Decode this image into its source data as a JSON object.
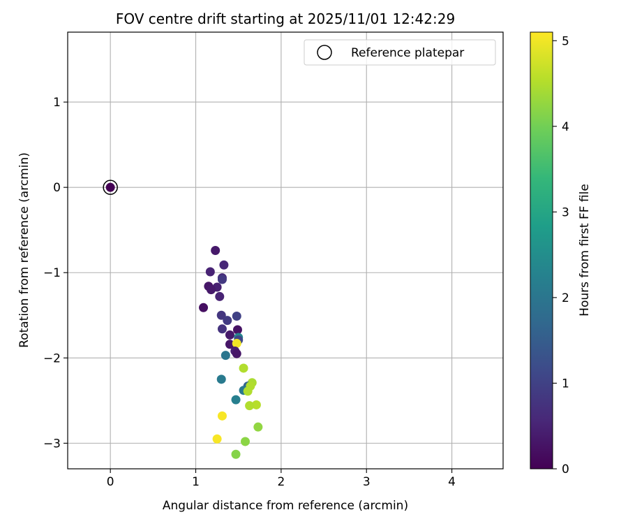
{
  "chart_data": {
    "type": "scatter",
    "title": "FOV centre drift starting at 2025/11/01 12:42:29",
    "xlabel": "Angular distance from reference (arcmin)",
    "ylabel": "Rotation from reference (arcmin)",
    "xlim": [
      -0.5,
      4.6
    ],
    "ylim": [
      -3.3,
      1.82
    ],
    "xticks": [
      0,
      1,
      2,
      3,
      4
    ],
    "yticks": [
      -3,
      -2,
      -1,
      0,
      1
    ],
    "grid": true,
    "legend": {
      "position": "top-right",
      "entries": [
        "Reference platepar"
      ]
    },
    "reference_point": {
      "x": 0,
      "y": 0
    },
    "colorbar": {
      "label": "Hours from first FF file",
      "range": [
        0,
        5.1
      ],
      "ticks": [
        0,
        1,
        2,
        3,
        4,
        5
      ],
      "colormap": [
        "#440154",
        "#482878",
        "#3e4989",
        "#31688e",
        "#26828e",
        "#1f9e89",
        "#35b779",
        "#6ece58",
        "#b5de2b",
        "#fde725"
      ]
    },
    "points": [
      {
        "x": 0.0,
        "y": 0.0,
        "t": 0.0
      },
      {
        "x": 1.23,
        "y": -0.74,
        "t": 0.35
      },
      {
        "x": 1.33,
        "y": -0.91,
        "t": 0.55
      },
      {
        "x": 1.17,
        "y": -0.99,
        "t": 0.5
      },
      {
        "x": 1.31,
        "y": -1.06,
        "t": 0.6
      },
      {
        "x": 1.31,
        "y": -1.08,
        "t": 0.85
      },
      {
        "x": 1.15,
        "y": -1.16,
        "t": 0.3
      },
      {
        "x": 1.25,
        "y": -1.17,
        "t": 0.45
      },
      {
        "x": 1.18,
        "y": -1.2,
        "t": 0.35
      },
      {
        "x": 1.28,
        "y": -1.28,
        "t": 0.5
      },
      {
        "x": 1.09,
        "y": -1.41,
        "t": 0.2
      },
      {
        "x": 1.3,
        "y": -1.5,
        "t": 0.8
      },
      {
        "x": 1.48,
        "y": -1.51,
        "t": 1.0
      },
      {
        "x": 1.37,
        "y": -1.56,
        "t": 0.9
      },
      {
        "x": 1.31,
        "y": -1.66,
        "t": 0.75
      },
      {
        "x": 1.49,
        "y": -1.67,
        "t": 0.25
      },
      {
        "x": 1.4,
        "y": -1.73,
        "t": 0.35
      },
      {
        "x": 1.5,
        "y": -1.76,
        "t": 2.3
      },
      {
        "x": 1.5,
        "y": -1.79,
        "t": 1.1
      },
      {
        "x": 1.4,
        "y": -1.84,
        "t": 0.3
      },
      {
        "x": 1.48,
        "y": -1.83,
        "t": 5.0
      },
      {
        "x": 1.46,
        "y": -1.92,
        "t": 0.45
      },
      {
        "x": 1.48,
        "y": -1.95,
        "t": 0.3
      },
      {
        "x": 1.35,
        "y": -1.97,
        "t": 2.0
      },
      {
        "x": 1.56,
        "y": -2.12,
        "t": 4.5
      },
      {
        "x": 1.3,
        "y": -2.25,
        "t": 2.1
      },
      {
        "x": 1.66,
        "y": -2.29,
        "t": 4.45
      },
      {
        "x": 1.61,
        "y": -2.33,
        "t": 1.6
      },
      {
        "x": 1.64,
        "y": -2.33,
        "t": 4.5
      },
      {
        "x": 1.56,
        "y": -2.38,
        "t": 2.05
      },
      {
        "x": 1.61,
        "y": -2.39,
        "t": 4.5
      },
      {
        "x": 1.47,
        "y": -2.49,
        "t": 2.2
      },
      {
        "x": 1.71,
        "y": -2.55,
        "t": 4.55
      },
      {
        "x": 1.63,
        "y": -2.56,
        "t": 4.5
      },
      {
        "x": 1.31,
        "y": -2.68,
        "t": 5.05
      },
      {
        "x": 1.73,
        "y": -2.81,
        "t": 4.25
      },
      {
        "x": 1.25,
        "y": -2.95,
        "t": 5.05
      },
      {
        "x": 1.58,
        "y": -2.98,
        "t": 4.2
      },
      {
        "x": 1.47,
        "y": -3.13,
        "t": 4.15
      }
    ]
  }
}
